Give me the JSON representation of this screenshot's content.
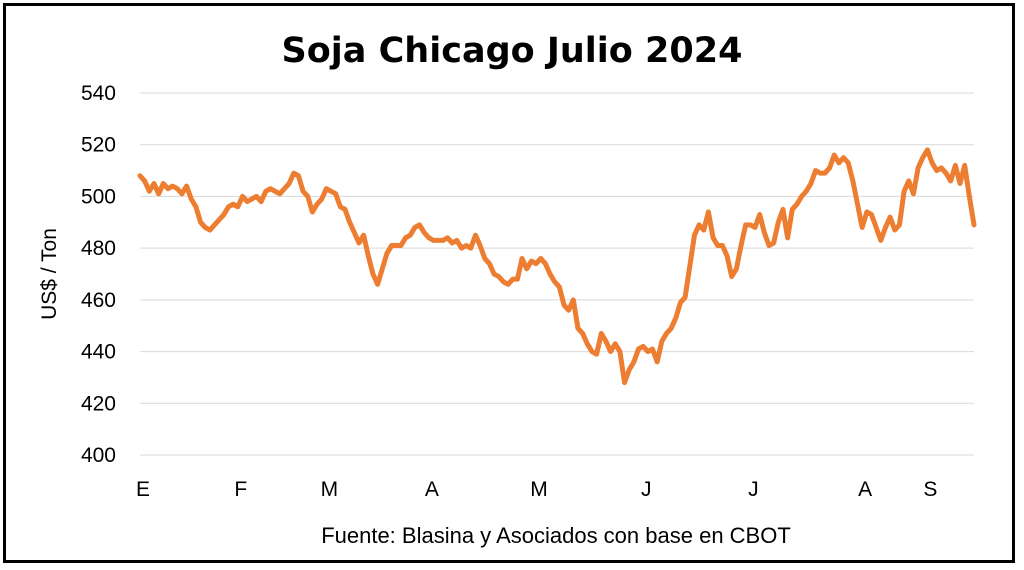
{
  "chart_data": {
    "type": "line",
    "title": "Soja Chicago Julio 2024",
    "ylabel": "US$ / Ton",
    "source": "Fuente: Blasina y Asociados con base en CBOT",
    "ylim": [
      400,
      540
    ],
    "yticks": [
      400,
      420,
      440,
      460,
      480,
      500,
      520,
      540
    ],
    "xlim": [
      0,
      179
    ],
    "month_ticks": [
      {
        "label": "E",
        "x": 0
      },
      {
        "label": "F",
        "x": 21
      },
      {
        "label": "M",
        "x": 40
      },
      {
        "label": "A",
        "x": 62
      },
      {
        "label": "M",
        "x": 85
      },
      {
        "label": "J",
        "x": 108
      },
      {
        "label": "J",
        "x": 131
      },
      {
        "label": "A",
        "x": 155
      },
      {
        "label": "S",
        "x": 169
      }
    ],
    "grid": true,
    "series": [
      {
        "color": "#ed7d31",
        "x": [
          0,
          1,
          2,
          3,
          4,
          5,
          6,
          7,
          8,
          9,
          10,
          11,
          12,
          13,
          14,
          15,
          16,
          17,
          18,
          19,
          20,
          21,
          22,
          23,
          24,
          25,
          26,
          27,
          28,
          29,
          30,
          31,
          32,
          33,
          34,
          35,
          36,
          37,
          38,
          39,
          40,
          41,
          42,
          43,
          44,
          45,
          46,
          47,
          48,
          49,
          50,
          51,
          52,
          53,
          54,
          55,
          56,
          57,
          58,
          59,
          60,
          61,
          62,
          63,
          64,
          65,
          66,
          67,
          68,
          69,
          70,
          71,
          72,
          73,
          74,
          75,
          76,
          77,
          78,
          79,
          80,
          81,
          82,
          83,
          84,
          85,
          86,
          87,
          88,
          89,
          90,
          91,
          92,
          93,
          94,
          95,
          96,
          97,
          98,
          99,
          100,
          101,
          102,
          103,
          104,
          105,
          106,
          107,
          108,
          109,
          110,
          111,
          112,
          113,
          114,
          115,
          116,
          117,
          118,
          119,
          120,
          121,
          122,
          123,
          124,
          125,
          126,
          127,
          128,
          129,
          130,
          131,
          132,
          133,
          134,
          135,
          136,
          137,
          138,
          139,
          140,
          141,
          142,
          143,
          144,
          145,
          146,
          147,
          148,
          149,
          150,
          151,
          152,
          153,
          154,
          155,
          156,
          157,
          158,
          159,
          160,
          161,
          162,
          163,
          164,
          165,
          166,
          167,
          168,
          169,
          170,
          171,
          172,
          173,
          174,
          175,
          176,
          177,
          178,
          179
        ],
        "values": [
          508,
          506,
          502,
          505,
          501,
          505,
          503,
          504,
          503,
          501,
          504,
          499,
          496,
          490,
          488,
          487,
          489,
          491,
          493,
          496,
          497,
          496,
          500,
          498,
          499,
          500,
          498,
          502,
          503,
          502,
          501,
          503,
          505,
          509,
          508,
          502,
          500,
          494,
          497,
          499,
          503,
          502,
          501,
          496,
          495,
          490,
          486,
          482,
          485,
          477,
          470,
          466,
          472,
          478,
          481,
          481,
          481,
          484,
          485,
          488,
          489,
          486,
          484,
          483,
          483,
          483,
          484,
          482,
          483,
          480,
          481,
          480,
          485,
          481,
          476,
          474,
          470,
          469,
          467,
          466,
          468,
          468,
          476,
          472,
          475,
          474,
          476,
          474,
          470,
          467,
          465,
          458,
          456,
          460,
          449,
          447,
          443,
          440,
          439,
          447,
          444,
          440,
          443,
          440,
          428,
          433,
          436,
          441,
          442,
          440,
          441,
          436,
          444,
          447,
          449,
          453,
          459,
          461,
          473,
          485,
          489,
          487,
          494,
          484,
          481,
          481,
          477,
          469,
          472,
          481,
          489,
          489,
          488,
          493,
          486,
          481,
          482,
          490,
          495,
          484,
          495,
          497,
          500,
          502,
          505,
          510,
          509,
          509,
          511,
          516,
          513,
          515,
          513,
          506,
          497,
          488,
          494,
          493,
          488,
          483,
          488,
          492,
          487,
          489,
          502,
          506,
          501,
          511,
          515,
          518,
          513,
          510,
          511,
          509,
          506,
          512,
          505,
          512,
          500,
          489
        ]
      }
    ]
  }
}
